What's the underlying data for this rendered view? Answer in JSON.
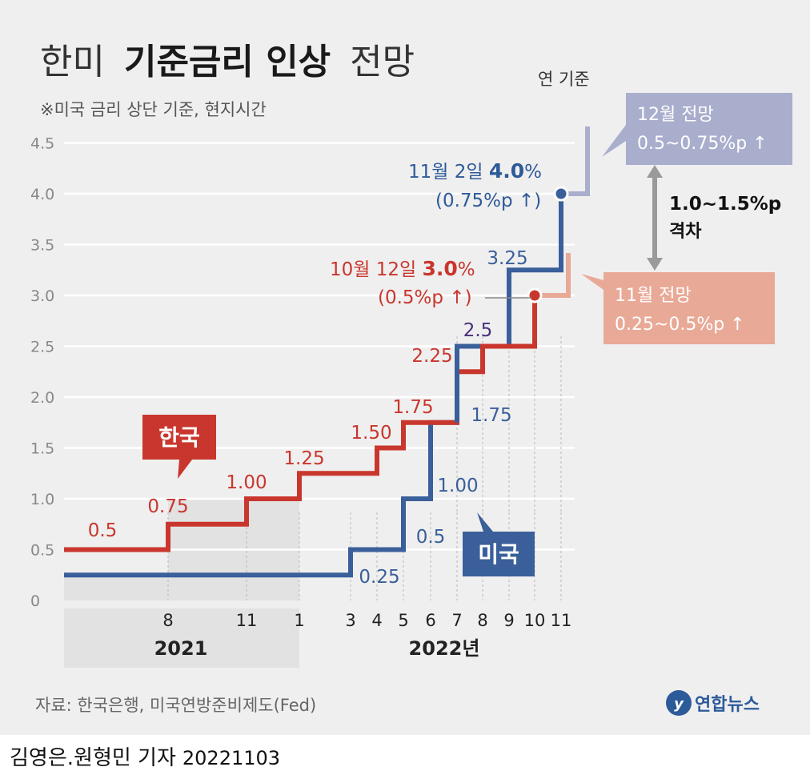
{
  "title": {
    "light1": "한미",
    "bold": "기준금리 인상",
    "light2": "전망"
  },
  "subtitle": "※미국 금리 상단 기준, 현지시간",
  "year_basis_label": "연 기준",
  "colors": {
    "korea": "#c9362d",
    "us": "#3a5f9a",
    "us_forecast": "#a9aecd",
    "korea_forecast": "#e9a997",
    "gray_arrow": "#9a9a9a",
    "background": "#efefef"
  },
  "chart_data": {
    "type": "line",
    "ylim": [
      0,
      4.5
    ],
    "yticks": [
      "0",
      "0.5",
      "1.0",
      "1.5",
      "2.0",
      "2.5",
      "3.0",
      "3.5",
      "4.0",
      "4.5"
    ],
    "x_tick_labels": [
      "8",
      "11",
      "1",
      "3",
      "4",
      "5",
      "6",
      "7",
      "8",
      "9",
      "10",
      "11"
    ],
    "year_labels": [
      "2021",
      "2022년"
    ],
    "series": [
      {
        "name": "한국",
        "steps": [
          {
            "date": "2021-08",
            "value": 0.75
          },
          {
            "date": "2021-11",
            "value": 1.0
          },
          {
            "date": "2022-01",
            "value": 1.25
          },
          {
            "date": "2022-04",
            "value": 1.5
          },
          {
            "date": "2022-05",
            "value": 1.75
          },
          {
            "date": "2022-07",
            "value": 2.25
          },
          {
            "date": "2022-08",
            "value": 2.5
          },
          {
            "date": "2022-10",
            "value": 3.0
          }
        ],
        "value_labels": [
          "0.5",
          "0.75",
          "1.00",
          "1.25",
          "1.50",
          "1.75",
          "2.25"
        ]
      },
      {
        "name": "미국",
        "steps": [
          {
            "date": "2022-03",
            "value": 0.5
          },
          {
            "date": "2022-05",
            "value": 1.0
          },
          {
            "date": "2022-06",
            "value": 1.75
          },
          {
            "date": "2022-07",
            "value": 2.5
          },
          {
            "date": "2022-09",
            "value": 3.25
          },
          {
            "date": "2022-11",
            "value": 4.0
          }
        ],
        "value_labels": [
          "0.25",
          "0.5",
          "1.00",
          "1.75",
          "2.5",
          "3.25"
        ]
      }
    ],
    "annotations": {
      "us_latest": {
        "line1_prefix": "11월 2일 ",
        "line1_bold": "4.0",
        "line1_suffix": "%",
        "line2": "(0.75%p ↑)"
      },
      "korea_latest": {
        "line1_prefix": "10월 12일 ",
        "line1_bold": "3.0",
        "line1_suffix": "%",
        "line2": "(0.5%p ↑)"
      },
      "us_forecast": {
        "line1": "12월 전망",
        "line2": "0.5~0.75%p ↑"
      },
      "korea_forecast": {
        "line1": "11월 전망",
        "line2": "0.25~0.5%p ↑"
      },
      "gap": {
        "line1": "1.0~1.5%p",
        "line2": "격차"
      }
    }
  },
  "source": "자료: 한국은행, 미국연방준비제도(Fed)",
  "logo_text": "연합뉴스",
  "credit": {
    "reporters": "김영은.원형민 기자",
    "date": "20221103"
  }
}
